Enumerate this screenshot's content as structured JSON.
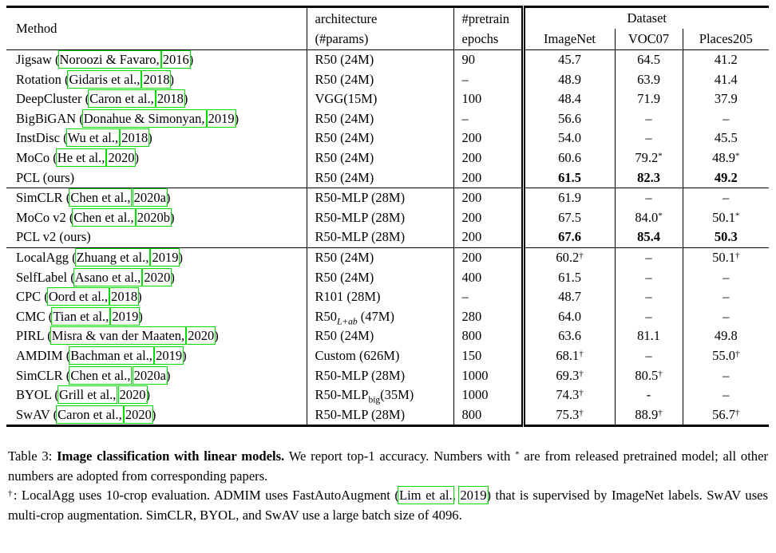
{
  "colors": {
    "background": "#ffffff",
    "text": "#000000",
    "citation_box_green": "#00db00"
  },
  "table": {
    "header": {
      "method": "Method",
      "arch_line1": "architecture",
      "arch_line2": "(#params)",
      "epochs_line1": "#pretrain",
      "epochs_line2": "epochs",
      "dataset_group": "Dataset",
      "dataset_cols": [
        "ImageNet",
        "VOC07",
        "Places205"
      ]
    },
    "rows": [
      {
        "method": {
          "prefix": "Jigsaw (",
          "authors": "Noroozi & Favaro,",
          "year": "2016",
          "suffix": ")"
        },
        "arch": {
          "pre": "R50 (24M)",
          "sub": "",
          "sub_italic": false,
          "post": ""
        },
        "epochs": "90",
        "imagenet": "45.7",
        "voc07": "64.5",
        "places205": "41.2",
        "bold_values": false,
        "group_start": false
      },
      {
        "method": {
          "prefix": "Rotation (",
          "authors": "Gidaris et al.,",
          "year": "2018",
          "suffix": ")"
        },
        "arch": {
          "pre": "R50 (24M)",
          "sub": "",
          "sub_italic": false,
          "post": ""
        },
        "epochs": "–",
        "imagenet": "48.9",
        "voc07": "63.9",
        "places205": "41.4",
        "bold_values": false,
        "group_start": false
      },
      {
        "method": {
          "prefix": "DeepCluster (",
          "authors": "Caron et al.,",
          "year": "2018",
          "suffix": ")"
        },
        "arch": {
          "pre": "VGG(15M)",
          "sub": "",
          "sub_italic": false,
          "post": ""
        },
        "epochs": "100",
        "imagenet": "48.4",
        "voc07": "71.9",
        "places205": "37.9",
        "bold_values": false,
        "group_start": false
      },
      {
        "method": {
          "prefix": "BigBiGAN (",
          "authors": "Donahue & Simonyan,",
          "year": "2019",
          "suffix": ")"
        },
        "arch": {
          "pre": "R50 (24M)",
          "sub": "",
          "sub_italic": false,
          "post": ""
        },
        "epochs": "–",
        "imagenet": "56.6",
        "voc07": "–",
        "places205": "–",
        "bold_values": false,
        "group_start": false
      },
      {
        "method": {
          "prefix": "InstDisc (",
          "authors": "Wu et al.,",
          "year": "2018",
          "suffix": ")"
        },
        "arch": {
          "pre": "R50 (24M)",
          "sub": "",
          "sub_italic": false,
          "post": ""
        },
        "epochs": "200",
        "imagenet": "54.0",
        "voc07": "–",
        "places205": "45.5",
        "bold_values": false,
        "group_start": false
      },
      {
        "method": {
          "prefix": "MoCo (",
          "authors": "He et al.,",
          "year": "2020",
          "suffix": ")"
        },
        "arch": {
          "pre": "R50 (24M)",
          "sub": "",
          "sub_italic": false,
          "post": ""
        },
        "epochs": "200",
        "imagenet": "60.6",
        "voc07": "79.2*",
        "places205": "48.9*",
        "bold_values": false,
        "group_start": false
      },
      {
        "method": {
          "prefix": "PCL (ours)",
          "authors": "",
          "year": "",
          "suffix": ""
        },
        "arch": {
          "pre": "R50 (24M)",
          "sub": "",
          "sub_italic": false,
          "post": ""
        },
        "epochs": "200",
        "imagenet": "61.5",
        "voc07": "82.3",
        "places205": "49.2",
        "bold_values": true,
        "group_start": false
      },
      {
        "method": {
          "prefix": "SimCLR (",
          "authors": "Chen et al.,",
          "year": "2020a",
          "suffix": ")"
        },
        "arch": {
          "pre": "R50-MLP (28M)",
          "sub": "",
          "sub_italic": false,
          "post": ""
        },
        "epochs": "200",
        "imagenet": "61.9",
        "voc07": "–",
        "places205": "–",
        "bold_values": false,
        "group_start": true
      },
      {
        "method": {
          "prefix": "MoCo v2 (",
          "authors": "Chen et al.,",
          "year": "2020b",
          "suffix": ")"
        },
        "arch": {
          "pre": "R50-MLP (28M)",
          "sub": "",
          "sub_italic": false,
          "post": ""
        },
        "epochs": "200",
        "imagenet": "67.5",
        "voc07": "84.0*",
        "places205": "50.1*",
        "bold_values": false,
        "group_start": false
      },
      {
        "method": {
          "prefix": "PCL v2 (ours)",
          "authors": "",
          "year": "",
          "suffix": ""
        },
        "arch": {
          "pre": "R50-MLP (28M)",
          "sub": "",
          "sub_italic": false,
          "post": ""
        },
        "epochs": "200",
        "imagenet": "67.6",
        "voc07": "85.4",
        "places205": "50.3",
        "bold_values": true,
        "group_start": false
      },
      {
        "method": {
          "prefix": "LocalAgg (",
          "authors": "Zhuang et al.,",
          "year": "2019",
          "suffix": ")"
        },
        "arch": {
          "pre": "R50 (24M)",
          "sub": "",
          "sub_italic": false,
          "post": ""
        },
        "epochs": "200",
        "imagenet": "60.2†",
        "voc07": "–",
        "places205": "50.1†",
        "bold_values": false,
        "group_start": true
      },
      {
        "method": {
          "prefix": "SelfLabel (",
          "authors": "Asano et al.,",
          "year": "2020",
          "suffix": ")"
        },
        "arch": {
          "pre": "R50 (24M)",
          "sub": "",
          "sub_italic": false,
          "post": ""
        },
        "epochs": "400",
        "imagenet": "61.5",
        "voc07": "–",
        "places205": "–",
        "bold_values": false,
        "group_start": false
      },
      {
        "method": {
          "prefix": "CPC (",
          "authors": "Oord et al.,",
          "year": "2018",
          "suffix": ")"
        },
        "arch": {
          "pre": "R101 (28M)",
          "sub": "",
          "sub_italic": false,
          "post": ""
        },
        "epochs": "–",
        "imagenet": "48.7",
        "voc07": "–",
        "places205": "–",
        "bold_values": false,
        "group_start": false
      },
      {
        "method": {
          "prefix": "CMC (",
          "authors": "Tian et al.,",
          "year": "2019",
          "suffix": ")"
        },
        "arch": {
          "pre": "R50",
          "sub": "L+ab",
          "sub_italic": true,
          "post": " (47M)"
        },
        "epochs": "280",
        "imagenet": "64.0",
        "voc07": "–",
        "places205": "–",
        "bold_values": false,
        "group_start": false
      },
      {
        "method": {
          "prefix": "PIRL (",
          "authors": "Misra & van der Maaten,",
          "year": "2020",
          "suffix": ")"
        },
        "arch": {
          "pre": "R50 (24M)",
          "sub": "",
          "sub_italic": false,
          "post": ""
        },
        "epochs": "800",
        "imagenet": "63.6",
        "voc07": "81.1",
        "places205": "49.8",
        "bold_values": false,
        "group_start": false
      },
      {
        "method": {
          "prefix": "AMDIM (",
          "authors": "Bachman et al.,",
          "year": "2019",
          "suffix": ")"
        },
        "arch": {
          "pre": "Custom (626M)",
          "sub": "",
          "sub_italic": false,
          "post": ""
        },
        "epochs": "150",
        "imagenet": "68.1†",
        "voc07": "–",
        "places205": "55.0†",
        "bold_values": false,
        "group_start": false
      },
      {
        "method": {
          "prefix": "SimCLR (",
          "authors": "Chen et al.,",
          "year": "2020a",
          "suffix": ")"
        },
        "arch": {
          "pre": "R50-MLP (28M)",
          "sub": "",
          "sub_italic": false,
          "post": ""
        },
        "epochs": "1000",
        "imagenet": "69.3†",
        "voc07": "80.5†",
        "places205": "–",
        "bold_values": false,
        "group_start": false
      },
      {
        "method": {
          "prefix": "BYOL (",
          "authors": "Grill et al.,",
          "year": "2020",
          "suffix": ")"
        },
        "arch": {
          "pre": "R50-MLP",
          "sub": "big",
          "sub_italic": false,
          "post": "(35M)"
        },
        "epochs": "1000",
        "imagenet": "74.3†",
        "voc07": "-",
        "places205": "–",
        "bold_values": false,
        "group_start": false
      },
      {
        "method": {
          "prefix": "SwAV (",
          "authors": "Caron et al.,",
          "year": "2020",
          "suffix": ")"
        },
        "arch": {
          "pre": "R50-MLP (28M)",
          "sub": "",
          "sub_italic": false,
          "post": ""
        },
        "epochs": "800",
        "imagenet": "75.3†",
        "voc07": "88.9†",
        "places205": "56.7†",
        "bold_values": false,
        "group_start": false
      }
    ]
  },
  "caption": {
    "p1_prefix": "Table 3: ",
    "p1_bold": "Image classification with linear models.",
    "p1_mid": " We report top-1 accuracy. Numbers with ",
    "p1_sup": "*",
    "p1_rest": " are from released pretrained model; all other numbers are adopted from corresponding papers.",
    "p2_sup": "†",
    "p2_pre": ": LocalAgg uses 10-crop evaluation. ADMIM uses FastAutoAugment (",
    "p2_cite_authors": "Lim et al.",
    "p2_mid": ", ",
    "p2_cite_year": "2019",
    "p2_rest": ") that is supervised by ImageNet labels. SwAV uses multi-crop augmentation. SimCLR, BYOL, and SwAV use a large batch size of 4096."
  }
}
